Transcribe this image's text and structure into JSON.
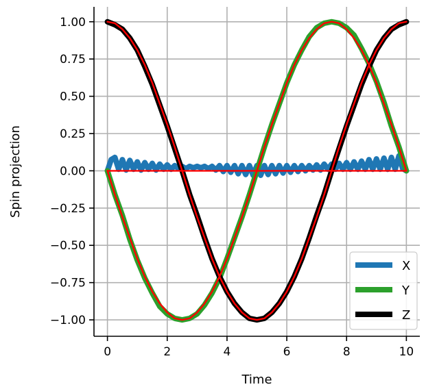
{
  "chart_data": {
    "type": "line",
    "title": "",
    "xlabel": "Time",
    "ylabel": "Spin projection",
    "xlim": [
      -0.45,
      10.45
    ],
    "ylim": [
      -1.11,
      1.1
    ],
    "grid": true,
    "legend_placement": "lower-right",
    "x_ticks": [
      0,
      2,
      4,
      6,
      8,
      10
    ],
    "x_tick_labels": [
      "0",
      "2",
      "4",
      "6",
      "8",
      "10"
    ],
    "y_ticks": [
      1.0,
      0.75,
      0.5,
      0.25,
      0.0,
      -0.25,
      -0.5,
      -0.75,
      -1.0
    ],
    "y_tick_labels": [
      "1.00",
      "0.75",
      "0.50",
      "0.25",
      "0.00",
      "−0.25",
      "−0.50",
      "−0.75",
      "−1.00"
    ],
    "series": [
      {
        "name": "X",
        "color": "#1f77b4",
        "x": [
          0,
          0.125,
          0.25,
          0.375,
          0.5,
          0.625,
          0.75,
          0.875,
          1,
          1.125,
          1.25,
          1.375,
          1.5,
          1.625,
          1.75,
          1.875,
          2,
          2.125,
          2.25,
          2.375,
          2.5,
          2.625,
          2.75,
          2.875,
          3,
          3.125,
          3.25,
          3.375,
          3.5,
          3.625,
          3.75,
          3.875,
          4,
          4.125,
          4.25,
          4.375,
          4.5,
          4.625,
          4.75,
          4.875,
          5,
          5.125,
          5.25,
          5.375,
          5.5,
          5.625,
          5.75,
          5.875,
          6,
          6.125,
          6.25,
          6.375,
          6.5,
          6.625,
          6.75,
          6.875,
          7,
          7.125,
          7.25,
          7.375,
          7.5,
          7.625,
          7.75,
          7.875,
          8,
          8.125,
          8.25,
          8.375,
          8.5,
          8.625,
          8.75,
          8.875,
          9,
          9.125,
          9.25,
          9.375,
          9.5,
          9.625,
          9.75,
          9.875,
          10
        ],
        "values": [
          0.0,
          0.075,
          0.09,
          0.01,
          0.075,
          0.005,
          0.07,
          0.01,
          0.06,
          0.005,
          0.055,
          0.01,
          0.05,
          0.005,
          0.045,
          0.01,
          0.04,
          0.01,
          0.035,
          0.015,
          0.03,
          0.015,
          0.03,
          0.02,
          0.03,
          0.02,
          0.03,
          0.015,
          0.03,
          0.005,
          0.035,
          -0.005,
          0.035,
          -0.01,
          0.035,
          -0.02,
          0.035,
          -0.025,
          0.035,
          -0.03,
          0.035,
          -0.03,
          0.035,
          -0.025,
          0.035,
          -0.02,
          0.035,
          -0.015,
          0.035,
          -0.01,
          0.035,
          -0.005,
          0.035,
          0.0,
          0.035,
          0.005,
          0.04,
          0.005,
          0.045,
          0.01,
          0.045,
          0.01,
          0.05,
          0.01,
          0.055,
          0.01,
          0.06,
          0.01,
          0.065,
          0.01,
          0.075,
          0.01,
          0.08,
          0.01,
          0.085,
          0.01,
          0.09,
          0.01,
          0.1,
          0.015,
          0.0
        ]
      },
      {
        "name": "Y",
        "color": "#2ca02c",
        "x": [
          0,
          0.25,
          0.5,
          0.75,
          1,
          1.25,
          1.5,
          1.75,
          2,
          2.25,
          2.5,
          2.75,
          3,
          3.25,
          3.5,
          3.75,
          4,
          4.25,
          4.5,
          4.75,
          5,
          5.25,
          5.5,
          5.75,
          6,
          6.25,
          6.5,
          6.75,
          7,
          7.25,
          7.5,
          7.75,
          8,
          8.25,
          8.5,
          8.75,
          9,
          9.25,
          9.5,
          9.75,
          10
        ],
        "values": [
          0.0,
          -0.16,
          -0.3,
          -0.46,
          -0.6,
          -0.72,
          -0.82,
          -0.91,
          -0.96,
          -0.99,
          -1.0,
          -0.99,
          -0.96,
          -0.9,
          -0.82,
          -0.72,
          -0.59,
          -0.45,
          -0.31,
          -0.16,
          0.0,
          0.16,
          0.31,
          0.45,
          0.59,
          0.71,
          0.81,
          0.9,
          0.96,
          0.99,
          1.0,
          0.99,
          0.96,
          0.91,
          0.82,
          0.72,
          0.6,
          0.46,
          0.3,
          0.16,
          0.0
        ]
      },
      {
        "name": "Z",
        "color": "#000000",
        "x": [
          0,
          0.25,
          0.5,
          0.75,
          1,
          1.25,
          1.5,
          1.75,
          2,
          2.25,
          2.5,
          2.75,
          3,
          3.25,
          3.5,
          3.75,
          4,
          4.25,
          4.5,
          4.75,
          5,
          5.25,
          5.5,
          5.75,
          6,
          6.25,
          6.5,
          6.75,
          7,
          7.25,
          7.5,
          7.75,
          8,
          8.25,
          8.5,
          8.75,
          9,
          9.25,
          9.5,
          9.75,
          10
        ],
        "values": [
          1.0,
          0.98,
          0.95,
          0.89,
          0.81,
          0.7,
          0.58,
          0.44,
          0.3,
          0.15,
          0.0,
          -0.16,
          -0.3,
          -0.45,
          -0.59,
          -0.71,
          -0.81,
          -0.89,
          -0.95,
          -0.99,
          -1.0,
          -0.99,
          -0.95,
          -0.89,
          -0.81,
          -0.71,
          -0.59,
          -0.45,
          -0.3,
          -0.16,
          0.0,
          0.15,
          0.3,
          0.44,
          0.58,
          0.7,
          0.81,
          0.89,
          0.95,
          0.98,
          1.0
        ]
      },
      {
        "color": "#ff0000",
        "x": [
          0,
          0.25,
          0.5,
          0.75,
          1,
          1.25,
          1.5,
          1.75,
          2,
          2.25,
          2.5,
          2.75,
          3,
          3.25,
          3.5,
          3.75,
          4,
          4.25,
          4.5,
          4.75,
          5,
          5.25,
          5.5,
          5.75,
          6,
          6.25,
          6.5,
          6.75,
          7,
          7.25,
          7.5,
          7.75,
          8,
          8.25,
          8.5,
          8.75,
          9,
          9.25,
          9.5,
          9.75,
          10
        ],
        "values": [
          0.0,
          -0.16,
          -0.31,
          -0.45,
          -0.59,
          -0.71,
          -0.81,
          -0.89,
          -0.95,
          -0.99,
          -1.0,
          -0.99,
          -0.95,
          -0.89,
          -0.81,
          -0.71,
          -0.59,
          -0.45,
          -0.31,
          -0.16,
          0.0,
          0.16,
          0.31,
          0.45,
          0.59,
          0.71,
          0.81,
          0.89,
          0.95,
          0.99,
          1.0,
          0.99,
          0.95,
          0.89,
          0.81,
          0.71,
          0.59,
          0.45,
          0.31,
          0.16,
          0.0
        ]
      },
      {
        "color": "#ff0000",
        "x": [
          0,
          0.25,
          0.5,
          0.75,
          1,
          1.25,
          1.5,
          1.75,
          2,
          2.25,
          2.5,
          2.75,
          3,
          3.25,
          3.5,
          3.75,
          4,
          4.25,
          4.5,
          4.75,
          5,
          5.25,
          5.5,
          5.75,
          6,
          6.25,
          6.5,
          6.75,
          7,
          7.25,
          7.5,
          7.75,
          8,
          8.25,
          8.5,
          8.75,
          9,
          9.25,
          9.5,
          9.75,
          10
        ],
        "values": [
          1.0,
          0.99,
          0.95,
          0.89,
          0.81,
          0.71,
          0.59,
          0.45,
          0.31,
          0.16,
          0.0,
          -0.16,
          -0.31,
          -0.45,
          -0.59,
          -0.71,
          -0.81,
          -0.89,
          -0.95,
          -0.99,
          -1.0,
          -0.99,
          -0.95,
          -0.89,
          -0.81,
          -0.71,
          -0.59,
          -0.45,
          -0.31,
          -0.16,
          0.0,
          0.16,
          0.31,
          0.45,
          0.59,
          0.71,
          0.81,
          0.89,
          0.95,
          0.99,
          1.0
        ]
      },
      {
        "color": "#ff0000",
        "x": [
          0,
          10
        ],
        "values": [
          0.0,
          0.0
        ]
      }
    ]
  }
}
